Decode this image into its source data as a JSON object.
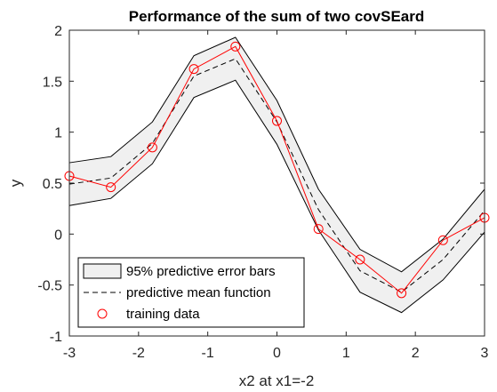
{
  "chart_data": {
    "type": "line",
    "title": "Performance of the sum of two covSEard",
    "xlabel": "x2 at x1=-2",
    "ylabel": "y",
    "xlim": [
      -3,
      3
    ],
    "ylim": [
      -1,
      2
    ],
    "grid": false,
    "legend_position": "bottom-left",
    "xticks": [
      -3,
      -2,
      -1,
      0,
      1,
      2,
      3
    ],
    "yticks": [
      -1,
      -0.5,
      0,
      0.5,
      1,
      1.5,
      2
    ],
    "xtick_labels": [
      "-3",
      "-2",
      "-1",
      "0",
      "1",
      "2",
      "3"
    ],
    "ytick_labels": [
      "-1",
      "-0.5",
      "0",
      "0.5",
      "1",
      "1.5",
      "2"
    ],
    "x": [
      -3,
      -2.4,
      -1.8,
      -1.2,
      -0.6,
      0,
      0.6,
      1.2,
      1.8,
      2.4,
      3
    ],
    "series": [
      {
        "name": "95% predictive error bars",
        "kind": "band",
        "upper": [
          0.7,
          0.76,
          1.1,
          1.75,
          1.93,
          1.31,
          0.44,
          -0.15,
          -0.37,
          -0.05,
          0.44
        ],
        "lower": [
          0.28,
          0.35,
          0.69,
          1.34,
          1.51,
          0.88,
          0.04,
          -0.57,
          -0.77,
          -0.45,
          0.02
        ]
      },
      {
        "name": "predictive mean function",
        "kind": "dashed-line",
        "values": [
          0.49,
          0.55,
          0.89,
          1.55,
          1.72,
          1.1,
          0.24,
          -0.36,
          -0.57,
          -0.25,
          0.23
        ]
      },
      {
        "name": "training data",
        "kind": "markers-with-line",
        "values": [
          0.57,
          0.46,
          0.85,
          1.62,
          1.84,
          1.11,
          0.05,
          -0.25,
          -0.58,
          -0.06,
          0.16
        ]
      }
    ],
    "colors": {
      "band_fill": "#f0f0f0",
      "band_edge": "#000000",
      "mean_line": "#000000",
      "training": "#ff0000",
      "axis": "#262626"
    }
  }
}
